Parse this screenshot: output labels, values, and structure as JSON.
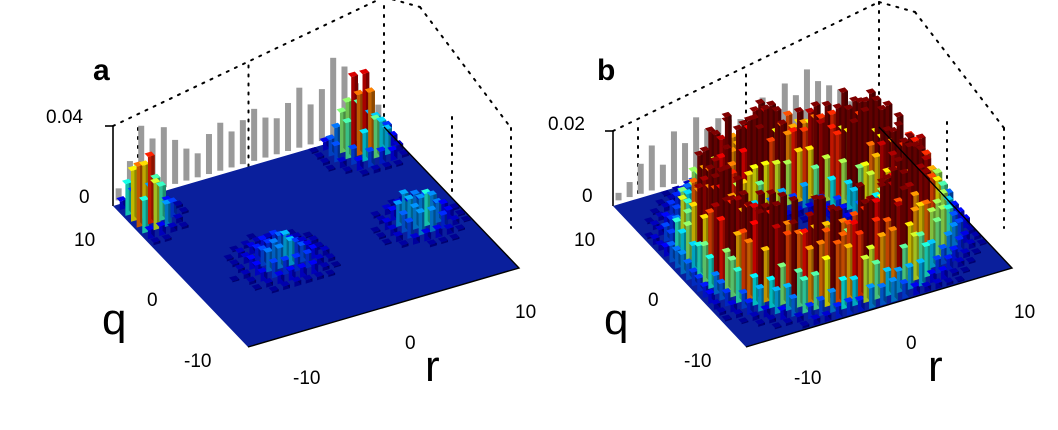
{
  "chart_data": [
    {
      "type": "bar3d",
      "panel_label": "a",
      "zlim": [
        0,
        0.04
      ],
      "z_ticks": [
        "0",
        "0.04"
      ],
      "xlabel": "r",
      "ylabel": "q",
      "x_ticks": [
        "-10",
        "0",
        "10"
      ],
      "y_ticks": [
        "10",
        "0",
        "-10"
      ],
      "xlim": [
        -12,
        12
      ],
      "ylim": [
        -12,
        12
      ],
      "colormap": "jet",
      "projection_color": "#9a9a9a",
      "description_of_distribution": "two localized clusters of tall bars near the q=+10 and r=+10 edges",
      "clusters": [
        {
          "r": -11,
          "q": 9,
          "peak": 0.041,
          "spread": 1.3
        },
        {
          "r": 9,
          "q": 10,
          "peak": 0.034,
          "spread": 1.4
        },
        {
          "r": -4,
          "q": -2,
          "peak": 0.014,
          "spread": 1.8
        },
        {
          "r": 8,
          "q": -2,
          "peak": 0.017,
          "spread": 1.5
        }
      ],
      "back_projection": [
        0.006,
        0.018,
        0.034,
        0.026,
        0.03,
        0.022,
        0.016,
        0.012,
        0.02,
        0.024,
        0.018,
        0.022,
        0.026,
        0.02,
        0.018,
        0.024,
        0.03,
        0.02,
        0.026,
        0.04,
        0.034,
        0.024,
        0.016,
        0.01
      ]
    },
    {
      "type": "bar3d",
      "panel_label": "b",
      "zlim": [
        0,
        0.02
      ],
      "z_ticks": [
        "0",
        "0.02"
      ],
      "xlabel": "r",
      "ylabel": "q",
      "x_ticks": [
        "-10",
        "0",
        "10"
      ],
      "y_ticks": [
        "10",
        "0",
        "-10"
      ],
      "xlim": [
        -12,
        12
      ],
      "ylim": [
        -12,
        12
      ],
      "colormap": "jet",
      "projection_color": "#9a9a9a",
      "description_of_distribution": "ring-shaped distribution of bars with radius about 8 centred at the origin",
      "ring": {
        "radius": 8,
        "width": 2,
        "peak": 0.021
      },
      "back_projection": [
        0.002,
        0.004,
        0.008,
        0.012,
        0.006,
        0.014,
        0.01,
        0.016,
        0.012,
        0.014,
        0.008,
        0.012,
        0.01,
        0.016,
        0.012,
        0.018,
        0.014,
        0.02,
        0.016,
        0.014,
        0.012,
        0.008,
        0.004,
        0.002
      ]
    }
  ]
}
